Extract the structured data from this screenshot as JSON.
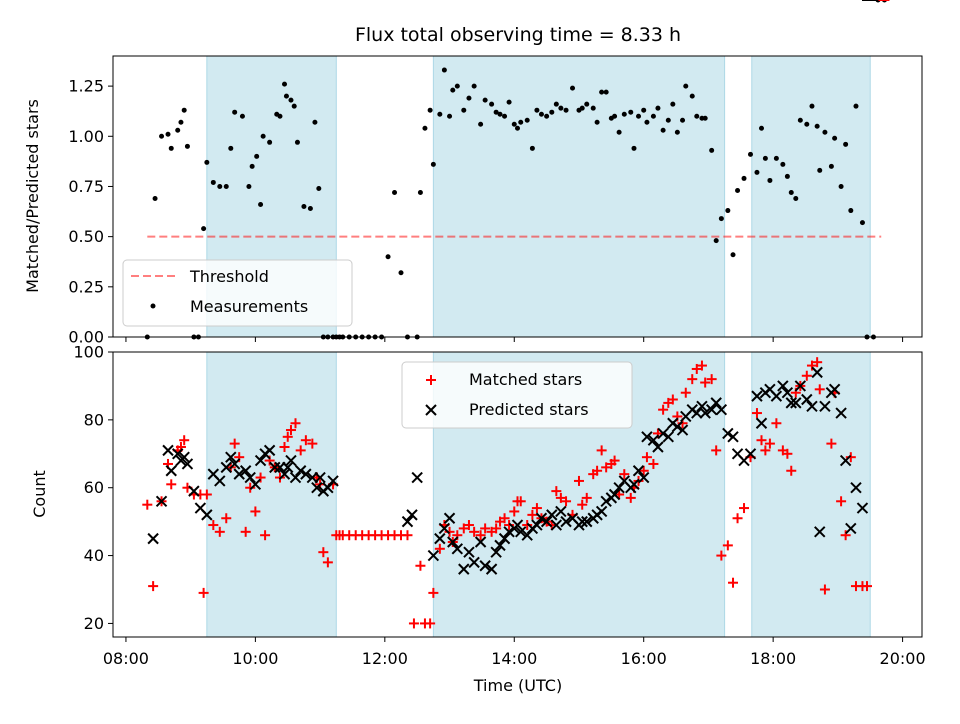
{
  "chart_data": {
    "title": "Flux total observing time = 8.33 h",
    "colors": {
      "shade": "#add8e6",
      "threshold": "#ff0000",
      "measurements": "#000000",
      "matched": "#ff0000",
      "predicted": "#000000"
    },
    "shaded_intervals_hours": [
      [
        9.25,
        11.25
      ],
      [
        12.75,
        17.25
      ],
      [
        17.67,
        19.5
      ]
    ],
    "top": {
      "type": "scatter",
      "ylabel": "Matched/Predicted stars",
      "ylim": [
        0,
        1.4
      ],
      "xlim_hours": [
        7.8,
        20.3
      ],
      "yticks": [
        0,
        0.25,
        0.5,
        0.75,
        1.0,
        1.25
      ],
      "ytick_labels": [
        "0.00",
        "0.25",
        "0.50",
        "0.75",
        "1.00",
        "1.25"
      ],
      "legend": {
        "placement": "lower-left",
        "threshold": "Threshold",
        "measurements": "Measurements"
      },
      "threshold": {
        "value": 0.5,
        "x_hours": [
          8.33,
          19.67
        ]
      },
      "measurements": {
        "x_hours": [
          8.33,
          8.45,
          8.55,
          8.65,
          8.7,
          8.8,
          8.85,
          8.9,
          8.95,
          9.05,
          9.12,
          9.2,
          9.25,
          9.35,
          9.45,
          9.55,
          9.62,
          9.68,
          9.8,
          9.9,
          9.95,
          10.02,
          10.08,
          10.12,
          10.22,
          10.33,
          10.38,
          10.45,
          10.48,
          10.55,
          10.6,
          10.65,
          10.75,
          10.85,
          10.92,
          10.98,
          11.05,
          11.12,
          11.2,
          11.25,
          11.3,
          11.35,
          11.45,
          11.55,
          11.65,
          11.75,
          11.85,
          11.95,
          12.05,
          12.15,
          12.25,
          12.35,
          12.5,
          12.55,
          12.62,
          12.7,
          12.75,
          12.85,
          12.92,
          13.0,
          13.05,
          13.12,
          13.22,
          13.3,
          13.38,
          13.48,
          13.55,
          13.65,
          13.72,
          13.78,
          13.85,
          13.92,
          14.0,
          14.05,
          14.1,
          14.2,
          14.28,
          14.35,
          14.42,
          14.5,
          14.58,
          14.65,
          14.72,
          14.8,
          14.9,
          15.0,
          15.05,
          15.12,
          15.22,
          15.28,
          15.35,
          15.42,
          15.5,
          15.55,
          15.62,
          15.7,
          15.8,
          15.85,
          15.92,
          16.0,
          16.05,
          16.15,
          16.22,
          16.3,
          16.38,
          16.45,
          16.52,
          16.6,
          16.65,
          16.75,
          16.82,
          16.9,
          16.95,
          17.05,
          17.12,
          17.2,
          17.3,
          17.38,
          17.45,
          17.55,
          17.65,
          17.75,
          17.82,
          17.88,
          17.95,
          18.05,
          18.15,
          18.22,
          18.28,
          18.35,
          18.42,
          18.52,
          18.6,
          18.68,
          18.72,
          18.8,
          18.9,
          18.95,
          19.05,
          19.12,
          19.2,
          19.28,
          19.38,
          19.45,
          19.55,
          19.62,
          19.72
        ],
        "y": [
          0.0,
          0.69,
          1.0,
          1.01,
          0.94,
          1.03,
          1.07,
          1.13,
          0.95,
          0.0,
          0.0,
          0.54,
          0.87,
          0.77,
          0.75,
          0.75,
          0.94,
          1.12,
          1.1,
          0.75,
          0.85,
          0.9,
          0.66,
          1.0,
          0.97,
          1.11,
          1.1,
          1.26,
          1.2,
          1.18,
          1.15,
          0.97,
          0.65,
          0.64,
          1.07,
          0.74,
          0.0,
          0.0,
          0.0,
          0.0,
          0.0,
          0.0,
          0.0,
          0.0,
          0.0,
          0.0,
          0.0,
          0.0,
          0.4,
          0.72,
          0.32,
          0.0,
          0.0,
          0.72,
          1.04,
          1.13,
          0.86,
          1.11,
          1.33,
          1.1,
          1.23,
          1.25,
          1.13,
          1.19,
          1.25,
          1.06,
          1.18,
          1.16,
          1.12,
          1.11,
          1.1,
          1.17,
          1.06,
          1.04,
          1.07,
          1.08,
          0.94,
          1.13,
          1.11,
          1.1,
          1.12,
          1.16,
          1.14,
          1.13,
          1.24,
          1.13,
          1.14,
          1.16,
          1.14,
          1.07,
          1.22,
          1.22,
          1.09,
          1.1,
          1.02,
          1.11,
          1.12,
          0.94,
          1.1,
          1.13,
          1.07,
          1.1,
          1.14,
          1.03,
          1.08,
          1.16,
          1.02,
          1.08,
          1.25,
          1.2,
          1.1,
          1.09,
          1.09,
          0.93,
          0.48,
          0.59,
          0.63,
          0.41,
          0.73,
          0.79,
          0.91,
          0.82,
          1.04,
          0.89,
          0.78,
          0.89,
          0.86,
          0.8,
          0.72,
          0.69,
          1.08,
          1.06,
          1.15,
          1.05,
          0.83,
          1.02,
          0.85,
          0.99,
          0.75,
          0.96,
          0.63,
          1.15,
          0.57,
          0.0,
          0.0
        ]
      }
    },
    "bottom": {
      "type": "scatter",
      "ylabel": "Count",
      "xlabel": "Time (UTC)",
      "ylim": [
        16,
        100
      ],
      "xlim_hours": [
        7.8,
        20.3
      ],
      "yticks": [
        20,
        40,
        60,
        80,
        100
      ],
      "ytick_labels": [
        "20",
        "40",
        "60",
        "80",
        "100"
      ],
      "xticks_hours": [
        8,
        10,
        12,
        14,
        16,
        18,
        20
      ],
      "xtick_labels": [
        "08:00",
        "10:00",
        "12:00",
        "14:00",
        "16:00",
        "18:00",
        "20:00"
      ],
      "legend": {
        "placement": "upper-center",
        "matched": "Matched stars",
        "predicted": "Predicted stars"
      },
      "matched": {
        "x_hours": [
          8.33,
          8.42,
          8.55,
          8.65,
          8.7,
          8.8,
          8.85,
          8.9,
          8.95,
          9.05,
          9.15,
          9.2,
          9.25,
          9.35,
          9.45,
          9.55,
          9.62,
          9.68,
          9.75,
          9.85,
          9.92,
          10.0,
          10.08,
          10.15,
          10.22,
          10.3,
          10.38,
          10.45,
          10.5,
          10.55,
          10.62,
          10.7,
          10.78,
          10.88,
          10.95,
          11.0,
          11.05,
          11.12,
          11.2,
          11.25,
          11.3,
          11.35,
          11.45,
          11.55,
          11.65,
          11.75,
          11.85,
          11.95,
          12.05,
          12.15,
          12.25,
          12.35,
          12.45,
          12.55,
          12.62,
          12.7,
          12.75,
          12.85,
          12.92,
          13.0,
          13.05,
          13.12,
          13.22,
          13.3,
          13.38,
          13.48,
          13.55,
          13.65,
          13.72,
          13.78,
          13.85,
          13.92,
          14.0,
          14.05,
          14.1,
          14.2,
          14.28,
          14.35,
          14.42,
          14.5,
          14.58,
          14.65,
          14.72,
          14.8,
          14.9,
          15.0,
          15.05,
          15.12,
          15.22,
          15.28,
          15.35,
          15.42,
          15.5,
          15.55,
          15.62,
          15.7,
          15.8,
          15.85,
          15.92,
          16.0,
          16.05,
          16.15,
          16.22,
          16.3,
          16.38,
          16.45,
          16.52,
          16.6,
          16.65,
          16.75,
          16.82,
          16.9,
          16.95,
          17.05,
          17.12,
          17.2,
          17.3,
          17.38,
          17.45,
          17.55,
          17.65,
          17.75,
          17.82,
          17.88,
          17.95,
          18.05,
          18.15,
          18.22,
          18.28,
          18.35,
          18.42,
          18.52,
          18.6,
          18.68,
          18.72,
          18.8,
          18.9,
          18.95,
          19.05,
          19.12,
          19.2,
          19.28,
          19.38,
          19.45,
          19.55,
          19.62,
          19.72
        ],
        "y": [
          55,
          31,
          56,
          67,
          61,
          71,
          72,
          74,
          60,
          58,
          58,
          29,
          58,
          49,
          47,
          51,
          66,
          73,
          69,
          47,
          60,
          53,
          63,
          46,
          68,
          66,
          63,
          72,
          75,
          77,
          79,
          71,
          74,
          73,
          63,
          61,
          41,
          38,
          61,
          46,
          46,
          46,
          46,
          46,
          46,
          46,
          46,
          46,
          46,
          46,
          46,
          46,
          20,
          37,
          20,
          20,
          29,
          42,
          49,
          47,
          44,
          46,
          48,
          49,
          47,
          46,
          48,
          47,
          48,
          50,
          51,
          49,
          53,
          56,
          56,
          49,
          52,
          54,
          51,
          50,
          49,
          59,
          57,
          56,
          52,
          62,
          55,
          57,
          64,
          65,
          71,
          66,
          67,
          68,
          58,
          64,
          57,
          60,
          62,
          65,
          69,
          67,
          76,
          83,
          85,
          86,
          81,
          79,
          88,
          92,
          95,
          96,
          91,
          92,
          71,
          40,
          43,
          32,
          51,
          54,
          69,
          82,
          74,
          71,
          73,
          79,
          71,
          70,
          65,
          88,
          90,
          93,
          96,
          97,
          89,
          30,
          73,
          88,
          56,
          46,
          69,
          31,
          31,
          31
        ]
      },
      "predicted": {
        "x_hours": [
          8.42,
          8.55,
          8.65,
          8.7,
          8.8,
          8.85,
          8.9,
          8.95,
          9.05,
          9.15,
          9.25,
          9.35,
          9.45,
          9.55,
          9.62,
          9.68,
          9.75,
          9.85,
          9.92,
          10.0,
          10.08,
          10.15,
          10.22,
          10.3,
          10.38,
          10.45,
          10.5,
          10.55,
          10.62,
          10.7,
          10.78,
          10.88,
          10.95,
          11.0,
          11.05,
          11.12,
          11.2,
          12.35,
          12.42,
          12.5,
          12.75,
          12.85,
          12.92,
          13.0,
          13.05,
          13.12,
          13.22,
          13.3,
          13.38,
          13.48,
          13.55,
          13.65,
          13.72,
          13.78,
          13.85,
          13.92,
          14.0,
          14.05,
          14.1,
          14.2,
          14.28,
          14.35,
          14.42,
          14.5,
          14.58,
          14.65,
          14.72,
          14.8,
          14.9,
          15.0,
          15.05,
          15.12,
          15.22,
          15.28,
          15.35,
          15.42,
          15.5,
          15.55,
          15.62,
          15.7,
          15.8,
          15.85,
          15.92,
          16.0,
          16.05,
          16.15,
          16.22,
          16.3,
          16.38,
          16.45,
          16.52,
          16.6,
          16.65,
          16.75,
          16.82,
          16.9,
          16.95,
          17.05,
          17.12,
          17.2,
          17.3,
          17.38,
          17.45,
          17.55,
          17.65,
          17.75,
          17.82,
          17.88,
          17.95,
          18.05,
          18.15,
          18.22,
          18.28,
          18.35,
          18.42,
          18.52,
          18.6,
          18.68,
          18.72,
          18.8,
          18.9,
          18.95,
          19.05,
          19.12,
          19.2,
          19.28,
          19.38,
          19.45,
          19.55
        ],
        "y": [
          45,
          56,
          71,
          65,
          70,
          68,
          69,
          67,
          59,
          54,
          52,
          64,
          62,
          66,
          69,
          67,
          64,
          65,
          63,
          61,
          68,
          70,
          71,
          66,
          66,
          64,
          66,
          68,
          63,
          65,
          64,
          63,
          60,
          63,
          59,
          60,
          62,
          50,
          52,
          63,
          40,
          45,
          48,
          51,
          44,
          42,
          36,
          41,
          38,
          44,
          37,
          36,
          41,
          43,
          45,
          47,
          48,
          49,
          47,
          46,
          48,
          49,
          51,
          50,
          52,
          49,
          53,
          50,
          51,
          49,
          50,
          50,
          51,
          52,
          53,
          56,
          57,
          58,
          60,
          62,
          60,
          61,
          65,
          63,
          75,
          74,
          72,
          76,
          75,
          79,
          78,
          77,
          81,
          83,
          82,
          84,
          82,
          83,
          85,
          83,
          76,
          75,
          70,
          68,
          70,
          87,
          79,
          88,
          89,
          87,
          90,
          88,
          85,
          85,
          90,
          86,
          84,
          94,
          47,
          84,
          88,
          89,
          82,
          68,
          48,
          60,
          54
        ]
      }
    }
  }
}
